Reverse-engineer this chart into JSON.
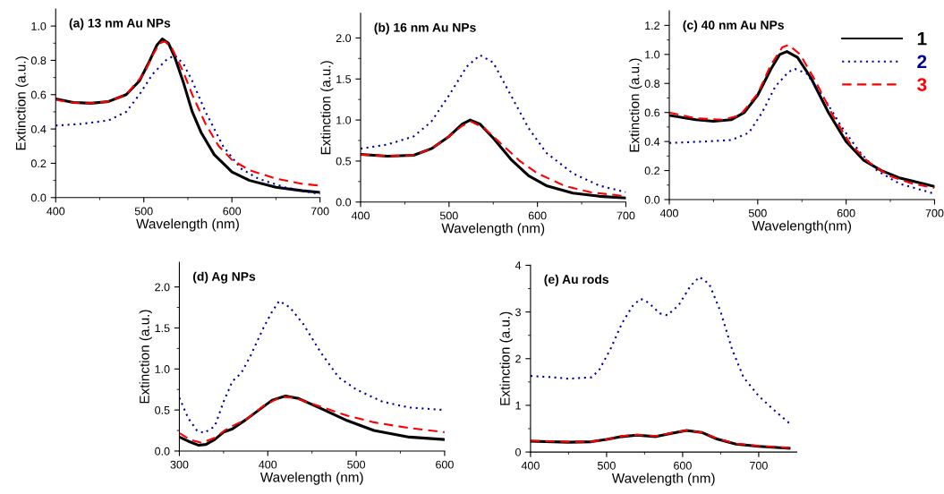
{
  "chart_data": [
    {
      "type": "line",
      "title": "(a) 13 nm Au NPs",
      "xlabel": "Wavelength (nm)",
      "ylabel": "Extinction (a.u.)",
      "xlim": [
        400,
        700
      ],
      "xticks": [
        400,
        500,
        600,
        {
          "value": 700,
          "label": "700"
        }
      ],
      "ylim": [
        0,
        1.1
      ],
      "yticks": [
        {
          "value": 0,
          "label": "0.0"
        },
        0.2,
        0.4,
        0.6,
        0.8,
        {
          "value": 1,
          "label": "1.0"
        }
      ],
      "grid": false,
      "legend": false,
      "marker": "none",
      "series": [
        {
          "color": "#000000",
          "line_style": "solid",
          "x": [
            400,
            420,
            440,
            460,
            480,
            495,
            505,
            515,
            521,
            528,
            535,
            545,
            555,
            565,
            580,
            600,
            620,
            650,
            680,
            700
          ],
          "values": [
            0.575,
            0.555,
            0.55,
            0.56,
            0.6,
            0.68,
            0.78,
            0.89,
            0.925,
            0.9,
            0.82,
            0.67,
            0.5,
            0.38,
            0.25,
            0.15,
            0.1,
            0.06,
            0.04,
            0.03
          ]
        },
        {
          "color": "#000099",
          "line_style": "dotted",
          "x": [
            400,
            430,
            460,
            480,
            495,
            510,
            525,
            535,
            545,
            555,
            570,
            590,
            610,
            630,
            660,
            700
          ],
          "values": [
            0.42,
            0.43,
            0.45,
            0.5,
            0.6,
            0.72,
            0.8,
            0.83,
            0.78,
            0.68,
            0.5,
            0.3,
            0.17,
            0.11,
            0.06,
            0.02
          ]
        },
        {
          "color": "#ff0000",
          "line_style": "dashed",
          "x": [
            400,
            420,
            440,
            460,
            480,
            500,
            510,
            518,
            524,
            532,
            545,
            555,
            570,
            585,
            600,
            620,
            650,
            680,
            700
          ],
          "values": [
            0.57,
            0.553,
            0.55,
            0.56,
            0.6,
            0.72,
            0.83,
            0.9,
            0.91,
            0.87,
            0.73,
            0.6,
            0.43,
            0.3,
            0.22,
            0.16,
            0.11,
            0.08,
            0.07
          ]
        }
      ]
    },
    {
      "type": "line",
      "title": "(b) 16 nm Au NPs",
      "xlabel": "Wavelength (nm)",
      "ylabel": "Extinction (a.u.)",
      "xlim": [
        400,
        700
      ],
      "xticks": [
        400,
        500,
        600,
        700
      ],
      "ylim": [
        0,
        2.3
      ],
      "yticks": [
        {
          "value": 0,
          "label": "0.0"
        },
        0.5,
        {
          "value": 1,
          "label": "1.0"
        },
        1.5,
        {
          "value": 2,
          "label": "2.0"
        }
      ],
      "grid": false,
      "legend": false,
      "marker": "none",
      "series": [
        {
          "color": "#000000",
          "line_style": "solid",
          "x": [
            400,
            430,
            460,
            480,
            500,
            515,
            524,
            535,
            550,
            570,
            590,
            610,
            640,
            670,
            700
          ],
          "values": [
            0.58,
            0.56,
            0.57,
            0.65,
            0.8,
            0.95,
            1.0,
            0.95,
            0.78,
            0.52,
            0.32,
            0.2,
            0.11,
            0.07,
            0.05
          ]
        },
        {
          "color": "#000099",
          "line_style": "dotted",
          "x": [
            400,
            430,
            460,
            480,
            500,
            520,
            535,
            550,
            570,
            590,
            610,
            640,
            670,
            700
          ],
          "values": [
            0.65,
            0.7,
            0.8,
            0.98,
            1.3,
            1.65,
            1.79,
            1.7,
            1.3,
            0.9,
            0.6,
            0.35,
            0.2,
            0.12
          ]
        },
        {
          "color": "#ff0000",
          "line_style": "dashed",
          "x": [
            400,
            430,
            460,
            480,
            500,
            515,
            525,
            540,
            560,
            580,
            600,
            630,
            660,
            700
          ],
          "values": [
            0.58,
            0.56,
            0.57,
            0.65,
            0.8,
            0.93,
            0.98,
            0.9,
            0.7,
            0.5,
            0.35,
            0.2,
            0.12,
            0.07
          ]
        }
      ]
    },
    {
      "type": "line",
      "title": "(c) 40 nm Au NPs",
      "xlabel": "Wavelength(nm)",
      "ylabel": "Extinction (a.u.)",
      "xlim": [
        400,
        700
      ],
      "xticks": [
        400,
        500,
        600,
        700
      ],
      "ylim": [
        0,
        1.3
      ],
      "yticks": [
        {
          "value": 0,
          "label": "0.0"
        },
        0.2,
        0.4,
        0.6,
        0.8,
        {
          "value": 1,
          "label": "1.0"
        },
        1.2
      ],
      "grid": false,
      "legend": "top right",
      "marker": "none",
      "series": [
        {
          "name": "1",
          "color": "#000000",
          "line_style": "solid",
          "x": [
            400,
            430,
            450,
            470,
            485,
            500,
            515,
            525,
            533,
            545,
            560,
            580,
            600,
            620,
            640,
            660,
            700
          ],
          "values": [
            0.58,
            0.55,
            0.54,
            0.55,
            0.6,
            0.72,
            0.9,
            1.0,
            1.02,
            0.98,
            0.84,
            0.6,
            0.4,
            0.27,
            0.2,
            0.15,
            0.09
          ]
        },
        {
          "name": "2",
          "color": "#000099",
          "line_style": "dotted",
          "x": [
            400,
            440,
            470,
            490,
            505,
            520,
            535,
            542,
            555,
            575,
            595,
            615,
            635,
            660,
            700
          ],
          "values": [
            0.39,
            0.4,
            0.41,
            0.46,
            0.6,
            0.78,
            0.88,
            0.9,
            0.87,
            0.7,
            0.5,
            0.33,
            0.2,
            0.11,
            0.04
          ]
        },
        {
          "name": "3",
          "color": "#ff0000",
          "line_style": "dashed",
          "x": [
            400,
            430,
            460,
            480,
            500,
            515,
            528,
            535,
            548,
            565,
            585,
            605,
            625,
            650,
            675,
            700
          ],
          "values": [
            0.6,
            0.56,
            0.55,
            0.58,
            0.73,
            0.93,
            1.05,
            1.065,
            1.0,
            0.82,
            0.58,
            0.38,
            0.26,
            0.16,
            0.11,
            0.08
          ]
        }
      ]
    },
    {
      "type": "line",
      "title": "(d) Ag NPs",
      "xlabel": "Wavelength (nm)",
      "ylabel": "Extinction (a.u.)",
      "xlim": [
        300,
        600
      ],
      "xticks": [
        300,
        400,
        500,
        600
      ],
      "ylim": [
        0,
        2.3
      ],
      "yticks": [
        {
          "value": 0,
          "label": "0.0"
        },
        0.5,
        {
          "value": 1,
          "label": "1.0"
        },
        1.5,
        {
          "value": 2,
          "label": "2.0"
        }
      ],
      "grid": false,
      "legend": false,
      "marker": "none",
      "series": [
        {
          "color": "#000000",
          "line_style": "solid",
          "x": [
            300,
            310,
            322,
            330,
            340,
            350,
            360,
            375,
            390,
            405,
            420,
            435,
            460,
            490,
            520,
            560,
            600
          ],
          "values": [
            0.17,
            0.12,
            0.07,
            0.08,
            0.14,
            0.23,
            0.27,
            0.38,
            0.5,
            0.62,
            0.67,
            0.64,
            0.52,
            0.37,
            0.25,
            0.17,
            0.14
          ]
        },
        {
          "color": "#000099",
          "line_style": "dotted",
          "x": [
            300,
            310,
            320,
            328,
            340,
            350,
            360,
            370,
            380,
            395,
            405,
            413,
            425,
            440,
            460,
            480,
            500,
            530,
            560,
            600
          ],
          "values": [
            0.65,
            0.4,
            0.25,
            0.22,
            0.3,
            0.6,
            0.85,
            0.95,
            1.15,
            1.5,
            1.7,
            1.83,
            1.75,
            1.55,
            1.2,
            0.9,
            0.75,
            0.6,
            0.53,
            0.5
          ]
        },
        {
          "color": "#ff0000",
          "line_style": "dashed",
          "x": [
            300,
            312,
            325,
            340,
            355,
            375,
            395,
            415,
            430,
            460,
            490,
            520,
            560,
            600
          ],
          "values": [
            0.22,
            0.14,
            0.1,
            0.16,
            0.28,
            0.38,
            0.55,
            0.66,
            0.65,
            0.54,
            0.43,
            0.35,
            0.28,
            0.23
          ]
        }
      ]
    },
    {
      "type": "line",
      "title": "(e) Au rods",
      "xlabel": "Wavelength (nm)",
      "ylabel": "Extinction (a.u.)",
      "xlim": [
        400,
        750
      ],
      "xticks": [
        400,
        500,
        600,
        700
      ],
      "ylim": [
        0,
        4
      ],
      "yticks": [
        0,
        1,
        2,
        3,
        4
      ],
      "grid": false,
      "legend": false,
      "marker": "none",
      "series": [
        {
          "color": "#000000",
          "line_style": "solid",
          "x": [
            400,
            450,
            480,
            500,
            520,
            540,
            565,
            585,
            605,
            625,
            645,
            670,
            700,
            740
          ],
          "values": [
            0.23,
            0.21,
            0.22,
            0.27,
            0.33,
            0.36,
            0.33,
            0.4,
            0.46,
            0.42,
            0.28,
            0.17,
            0.12,
            0.08
          ]
        },
        {
          "color": "#000099",
          "line_style": "dotted",
          "x": [
            400,
            430,
            450,
            480,
            490,
            505,
            520,
            535,
            545,
            555,
            570,
            580,
            595,
            610,
            622,
            635,
            650,
            665,
            680,
            700,
            720,
            740
          ],
          "values": [
            1.63,
            1.6,
            1.57,
            1.6,
            1.75,
            2.2,
            2.75,
            3.15,
            3.28,
            3.2,
            2.97,
            2.93,
            3.15,
            3.55,
            3.75,
            3.6,
            3.0,
            2.2,
            1.6,
            1.2,
            0.9,
            0.62
          ]
        },
        {
          "color": "#ff0000",
          "line_style": "dashed",
          "x": [
            400,
            450,
            480,
            500,
            520,
            540,
            565,
            585,
            605,
            625,
            645,
            670,
            700,
            740
          ],
          "values": [
            0.24,
            0.22,
            0.22,
            0.27,
            0.34,
            0.37,
            0.34,
            0.41,
            0.46,
            0.42,
            0.29,
            0.18,
            0.13,
            0.09
          ]
        }
      ]
    }
  ]
}
